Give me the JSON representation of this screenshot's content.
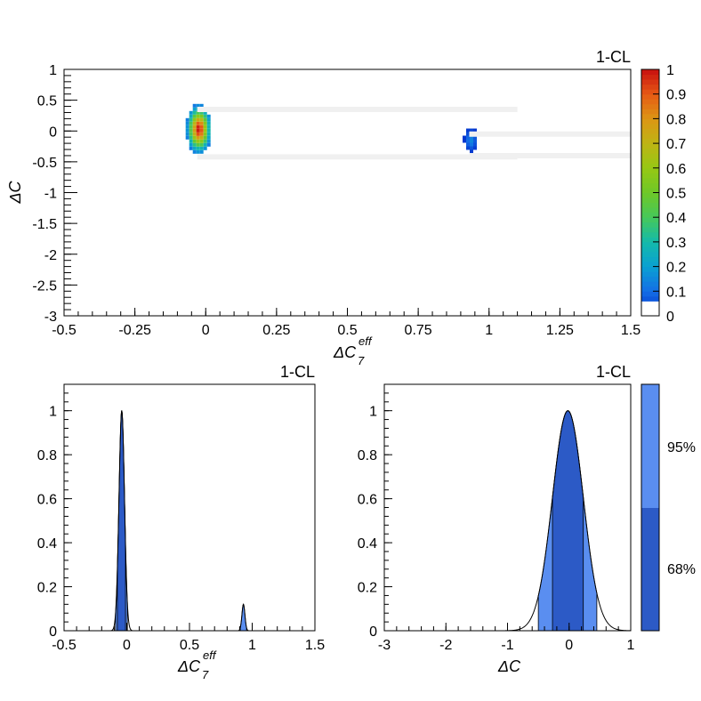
{
  "chart_data": [
    {
      "type": "heatmap",
      "title": "1-CL",
      "xlabel": "ΔC",
      "xlabel_sub": "7",
      "xlabel_sup": "eff",
      "ylabel": "ΔC",
      "xlim": [
        -0.5,
        1.5
      ],
      "ylim": [
        -3,
        1
      ],
      "xticks": [
        "-0.5",
        "-0.25",
        "0",
        "0.25",
        "0.5",
        "0.75",
        "1",
        "1.25",
        "1.5"
      ],
      "xtick_values": [
        -0.5,
        -0.25,
        0,
        0.25,
        0.5,
        0.75,
        1,
        1.25,
        1.5
      ],
      "yticks": [
        "1",
        "0.5",
        "0",
        "-0.5",
        "-1",
        "-1.5",
        "-2",
        "-2.5",
        "-3"
      ],
      "ytick_values": [
        1,
        0.5,
        0,
        -0.5,
        -1,
        -1.5,
        -2,
        -2.5,
        -3
      ],
      "blobs": [
        {
          "x": -0.03,
          "y": 0.0,
          "sx": 0.022,
          "sy": 0.2,
          "peak": 1.0
        },
        {
          "x": 0.93,
          "y": -0.18,
          "sx": 0.012,
          "sy": 0.1,
          "peak": 0.15
        }
      ],
      "colorbar": {
        "zlim": [
          0,
          1
        ],
        "ticks": [
          "1",
          "0.9",
          "0.8",
          "0.7",
          "0.6",
          "0.5",
          "0.4",
          "0.3",
          "0.2",
          "0.1",
          "0"
        ],
        "tick_values": [
          1,
          0.9,
          0.8,
          0.7,
          0.6,
          0.5,
          0.4,
          0.3,
          0.2,
          0.1,
          0
        ]
      }
    },
    {
      "type": "area",
      "title": "1-CL",
      "xlabel": "ΔC",
      "xlabel_sub": "7",
      "xlabel_sup": "eff",
      "xlim": [
        -0.5,
        1.5
      ],
      "ylim": [
        0,
        1.12
      ],
      "xticks": [
        "-0.5",
        "0",
        "0.5",
        "1",
        "1.5"
      ],
      "xtick_values": [
        -0.5,
        0,
        0.5,
        1,
        1.5
      ],
      "yticks": [
        "0",
        "0.2",
        "0.4",
        "0.6",
        "0.8",
        "1"
      ],
      "ytick_values": [
        0,
        0.2,
        0.4,
        0.6,
        0.8,
        1
      ],
      "peaks": [
        {
          "x": -0.04,
          "sigma": 0.022,
          "height": 1.0
        },
        {
          "x": 0.93,
          "sigma": 0.012,
          "height": 0.12
        }
      ],
      "band68": [
        [
          -0.075,
          -0.01
        ]
      ],
      "band95": [
        [
          -0.09,
          0.005
        ],
        [
          0.905,
          0.955
        ]
      ]
    },
    {
      "type": "area",
      "title": "1-CL",
      "xlabel": "ΔC",
      "xlim": [
        -3,
        1
      ],
      "ylim": [
        0,
        1.12
      ],
      "xticks": [
        "-3",
        "-2",
        "-1",
        "0",
        "1"
      ],
      "xtick_values": [
        -3,
        -2,
        -1,
        0,
        1
      ],
      "yticks": [
        "0",
        "0.2",
        "0.4",
        "0.6",
        "0.8",
        "1"
      ],
      "ytick_values": [
        0,
        0.2,
        0.4,
        0.6,
        0.8,
        1
      ],
      "peak": {
        "x": -0.02,
        "sigma": 0.25,
        "height": 1.0
      },
      "band68": [
        -0.27,
        0.23
      ],
      "band95": [
        -0.5,
        0.45
      ]
    }
  ],
  "legend": {
    "entries": [
      "95%",
      "68%"
    ],
    "colors": [
      "#5a8ef0",
      "#2c5ac6"
    ]
  },
  "colors": {
    "band68": "#2c5ac6",
    "band95": "#5a8ef0"
  }
}
